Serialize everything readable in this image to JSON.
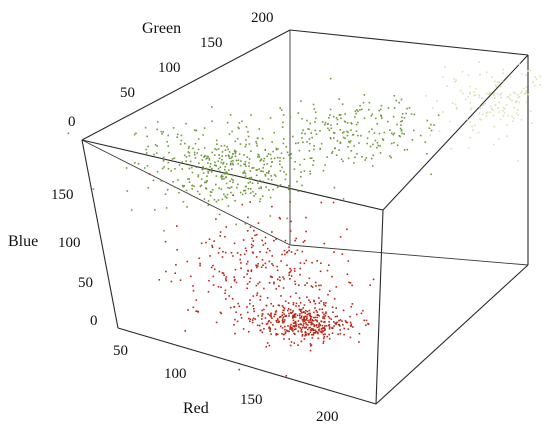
{
  "chart_data": {
    "type": "scatter",
    "projection": "3d",
    "title": "",
    "axes": {
      "red": {
        "label": "Red",
        "ticks": [
          "50",
          "100",
          "150",
          "200"
        ],
        "range": [
          30,
          230
        ]
      },
      "green": {
        "label": "Green",
        "ticks": [
          "0",
          "50",
          "100",
          "150",
          "200"
        ],
        "range": [
          0,
          200
        ]
      },
      "blue": {
        "label": "Blue",
        "ticks": [
          "0",
          "50",
          "100",
          "150"
        ],
        "range": [
          0,
          200
        ]
      }
    },
    "grid": false,
    "box": true,
    "series": [
      {
        "color": "#6f9a3c",
        "clusters": [
          {
            "center": [
              100,
              50,
              150
            ],
            "spread": [
              30,
              15,
              18
            ],
            "count": 420
          },
          {
            "center": [
              140,
              115,
              160
            ],
            "spread": [
              25,
              20,
              15
            ],
            "count": 220
          }
        ]
      },
      {
        "color": "#d8e2b4",
        "clusters": [
          {
            "center": [
              195,
              175,
              170
            ],
            "spread": [
              15,
              15,
              15
            ],
            "count": 160
          }
        ]
      },
      {
        "color": "#b8281a",
        "clusters": [
          {
            "center": [
              185,
              25,
              20
            ],
            "spread": [
              18,
              8,
              8
            ],
            "count": 380
          },
          {
            "center": [
              150,
              30,
              60
            ],
            "spread": [
              30,
              15,
              30
            ],
            "count": 300
          }
        ]
      }
    ]
  }
}
